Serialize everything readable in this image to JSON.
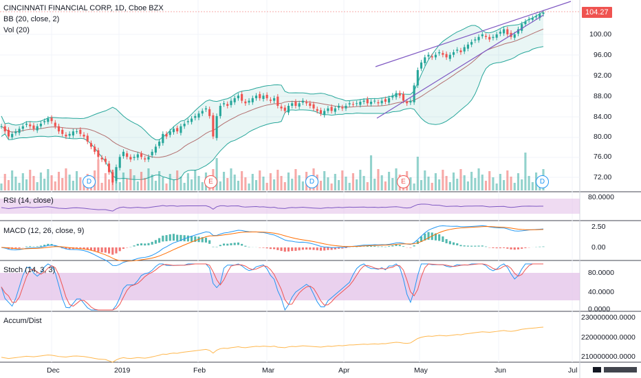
{
  "main_pane": {
    "title": "CINCINNATI FINANCIAL CORP, 1D, Cboe BZX",
    "indicator_bb": "BB (20, close, 2)",
    "indicator_vol": "Vol (20)",
    "last_price": "104.27",
    "price_axis": [
      "100.00",
      "96.00",
      "92.00",
      "88.00",
      "84.00",
      "80.00",
      "76.00",
      "72.00"
    ],
    "events": [
      {
        "type": "D",
        "label": "D"
      },
      {
        "type": "E",
        "label": "E"
      },
      {
        "type": "D",
        "label": "D"
      },
      {
        "type": "E",
        "label": "E"
      },
      {
        "type": "D",
        "label": "D"
      }
    ]
  },
  "rsi_pane": {
    "title": "RSI (14, close)",
    "axis": [
      "80.0000"
    ]
  },
  "macd_pane": {
    "title": "MACD (12, 26, close, 9)",
    "axis": [
      "2.50",
      "0.00"
    ]
  },
  "stoch_pane": {
    "title": "Stoch (14, 3, 3)",
    "axis": [
      "80.0000",
      "40.0000",
      "0.0000"
    ]
  },
  "ad_pane": {
    "title": "Accum/Dist",
    "axis": [
      "230000000.0000",
      "220000000.0000",
      "210000000.0000"
    ]
  },
  "time_axis": [
    "Dec",
    "2019",
    "Feb",
    "Mar",
    "Apr",
    "May",
    "Jun",
    "Jul"
  ],
  "colors": {
    "up": "#26a69a",
    "down": "#ef5350",
    "bb": "#26a69a",
    "rsi_band": "#e1bee7",
    "stoch_band": "#e1bee7",
    "trend": "#7e57c2",
    "ad_line": "#ffb74d"
  },
  "logo_icon": "tradingview-logo-icon",
  "chart_data": {
    "type": "candlestick",
    "title": "CINCINNATI FINANCIAL CORP, 1D, Cboe BZX",
    "close_series": [
      82,
      81,
      80,
      80.5,
      81,
      81.5,
      82,
      82.5,
      82,
      81.5,
      82,
      82.5,
      83,
      83.5,
      83,
      82,
      81,
      80.5,
      80,
      80.5,
      81,
      81,
      80.5,
      80,
      79,
      78,
      77,
      76,
      75.5,
      75,
      73,
      71,
      74,
      76,
      77,
      76,
      75.5,
      76,
      76.5,
      76,
      75.5,
      76,
      77,
      78,
      79,
      80.5,
      80,
      81,
      81.5,
      81,
      82,
      82.5,
      83,
      83.5,
      84,
      84.5,
      85,
      85.5,
      84,
      80,
      84,
      86,
      86.5,
      86,
      87,
      87.5,
      88,
      87,
      86.5,
      87,
      87.5,
      88,
      87.5,
      88,
      87.5,
      87,
      87.5,
      86,
      85.5,
      85,
      86,
      86.5,
      86,
      86.5,
      87,
      86.5,
      86,
      85.5,
      85,
      84.5,
      85,
      85.5,
      85,
      85.5,
      86,
      85.5,
      86,
      86.5,
      86.3,
      86.5,
      86.8,
      87,
      86.5,
      86.8,
      87,
      86.5,
      87,
      86.8,
      87.5,
      88,
      88.5,
      88,
      87,
      86.5,
      87,
      90,
      93,
      94.5,
      95.5,
      96,
      95.5,
      96,
      96.5,
      96,
      95.5,
      96,
      96.5,
      97,
      96.5,
      97.5,
      98,
      98.5,
      99,
      99.5,
      100,
      99.5,
      99,
      99.5,
      100,
      100.5,
      101,
      100,
      99.5,
      100,
      101,
      102,
      102.5,
      103,
      103.2,
      103.5,
      104,
      104.27
    ],
    "price_range": [
      71,
      106
    ]
  }
}
